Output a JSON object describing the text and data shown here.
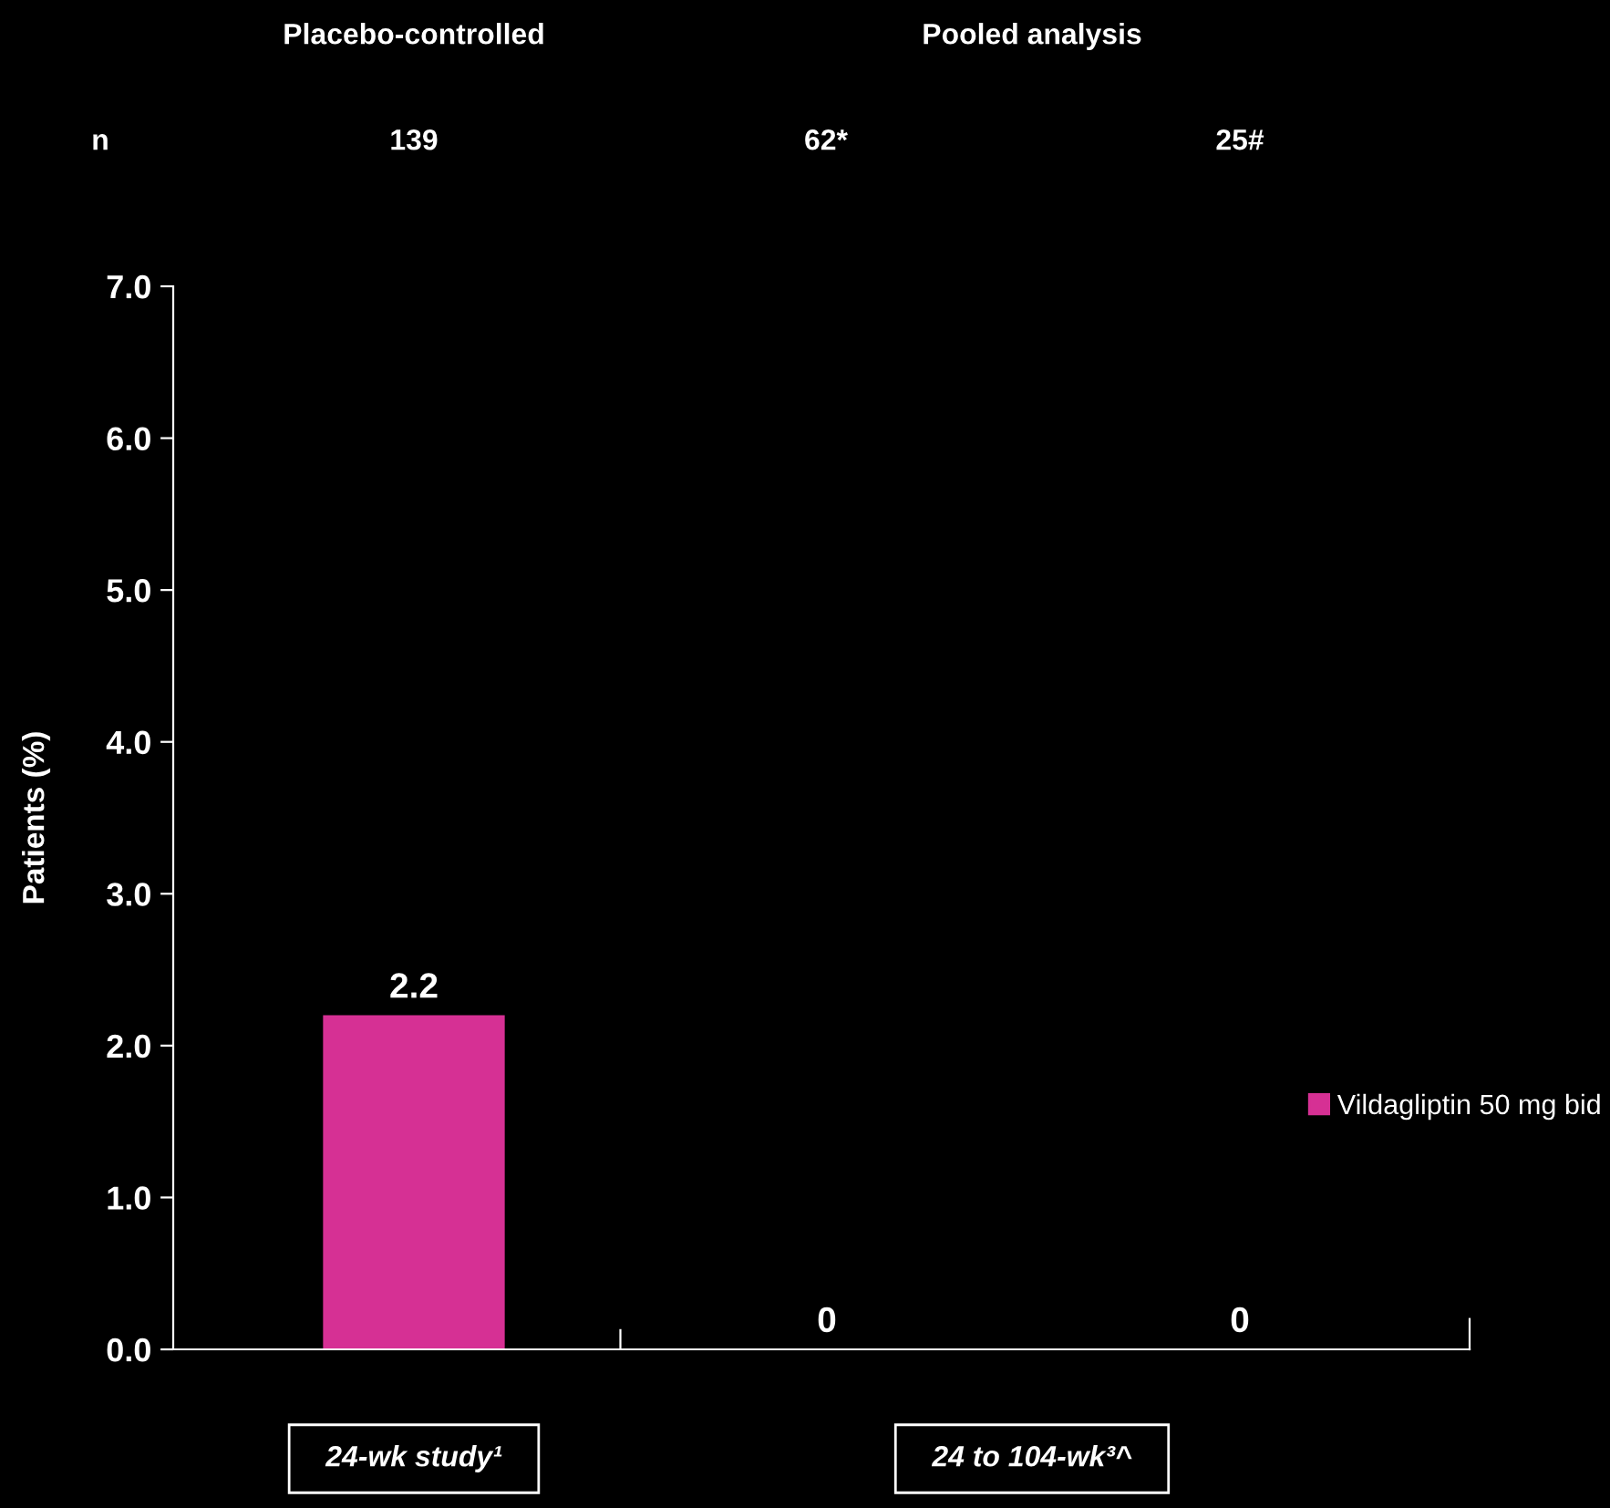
{
  "chart_data": {
    "type": "bar",
    "ylabel": "Patients (%)",
    "categories": [
      null,
      null,
      null
    ],
    "series": [
      {
        "name": "Vildagliptin 50 mg bid",
        "color": "#d63094",
        "values": [
          2.2,
          0,
          0
        ]
      }
    ],
    "ylim": [
      0,
      7
    ],
    "yticks": [
      {
        "value": 0,
        "label": "0.0"
      },
      {
        "value": 1,
        "label": "1.0"
      },
      {
        "value": 2,
        "label": "2.0"
      },
      {
        "value": 3,
        "label": "3.0"
      },
      {
        "value": 4,
        "label": "4.0"
      },
      {
        "value": 5,
        "label": "5.0"
      },
      {
        "value": 6,
        "label": "6.0"
      },
      {
        "value": 7,
        "label": "7.0"
      }
    ],
    "data_labels": true,
    "legend": "right",
    "grid": false,
    "annotations": [
      "Placebo-controlled",
      "Pooled analysis",
      "n",
      "139",
      "62*",
      "25#",
      "24-wk study¹",
      "24 to 104-wk³^"
    ]
  }
}
